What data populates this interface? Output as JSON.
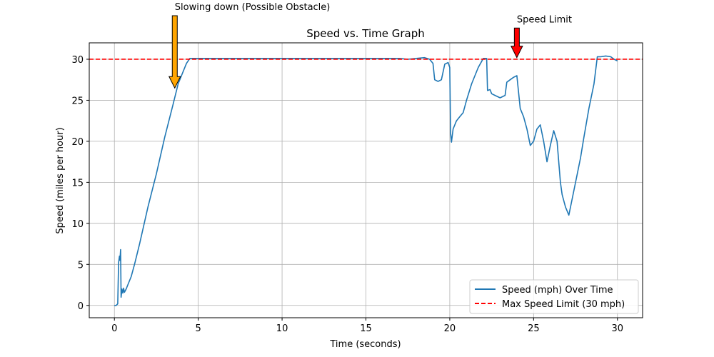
{
  "chart_data": {
    "type": "line",
    "title": "Speed vs. Time Graph",
    "xlabel": "Time (seconds)",
    "ylabel": "Speed (miles per hour)",
    "xlim": [
      -1.5,
      31.5
    ],
    "ylim": [
      -1.5,
      32
    ],
    "xticks": [
      "0",
      "5",
      "10",
      "15",
      "20",
      "25",
      "30"
    ],
    "yticks": [
      "0",
      "5",
      "10",
      "15",
      "20",
      "25",
      "30"
    ],
    "grid": true,
    "legend_position": "lower-right",
    "series": [
      {
        "name": "Speed (mph) Over Time",
        "color": "#1f77b4",
        "style": "solid",
        "x": [
          0,
          0.1,
          0.2,
          0.25,
          0.3,
          0.33,
          0.37,
          0.4,
          0.45,
          0.5,
          0.55,
          0.6,
          0.7,
          0.8,
          1.0,
          1.2,
          1.5,
          2.0,
          2.5,
          3.0,
          3.5,
          3.8,
          4.1,
          4.3,
          4.5,
          5,
          8,
          10,
          12,
          15,
          17,
          17.5,
          18,
          18.5,
          18.8,
          19.0,
          19.1,
          19.3,
          19.5,
          19.7,
          19.9,
          20.0,
          20.05,
          20.1,
          20.2,
          20.4,
          20.6,
          20.8,
          21.0,
          21.3,
          21.7,
          22.0,
          22.2,
          22.25,
          22.4,
          22.5,
          22.7,
          23.0,
          23.3,
          23.4,
          23.6,
          23.8,
          24.0,
          24.2,
          24.4,
          24.6,
          24.8,
          25.0,
          25.2,
          25.4,
          25.6,
          25.8,
          26.0,
          26.2,
          26.4,
          26.6,
          26.7,
          26.9,
          27.1,
          27.3,
          27.5,
          27.8,
          28.0,
          28.3,
          28.6,
          28.8,
          29.0,
          29.3,
          29.6,
          29.8,
          30.0
        ],
        "y": [
          0,
          0,
          0.2,
          5.2,
          6.0,
          5.5,
          6.8,
          1.0,
          2.0,
          1.5,
          2.1,
          1.6,
          2.0,
          2.5,
          3.5,
          5.0,
          7.5,
          12.0,
          16.0,
          20.5,
          24.5,
          27.0,
          28.5,
          29.5,
          30.1,
          30.1,
          30.1,
          30.1,
          30.1,
          30.1,
          30.1,
          30.0,
          30.1,
          30.2,
          30.0,
          29.5,
          27.5,
          27.3,
          27.5,
          29.4,
          29.6,
          29.0,
          21.0,
          19.9,
          21.5,
          22.5,
          23.0,
          23.5,
          25.0,
          27.0,
          29.0,
          30.1,
          30.1,
          26.2,
          26.3,
          25.8,
          25.6,
          25.3,
          25.6,
          27.2,
          27.5,
          27.8,
          28.0,
          24.0,
          23.0,
          21.5,
          19.5,
          20.0,
          21.5,
          22.0,
          20.0,
          17.5,
          19.5,
          21.3,
          20.0,
          15.0,
          13.5,
          12.0,
          11.0,
          13.0,
          15.0,
          18.0,
          20.5,
          24.0,
          27.0,
          30.3,
          30.3,
          30.4,
          30.3,
          30.0,
          29.8
        ]
      },
      {
        "name": "Max Speed Limit (30 mph)",
        "color": "#ff0000",
        "style": "dashed",
        "y_constant": 30
      }
    ],
    "annotations": [
      {
        "text": "Slowing down (Possible Obstacle)",
        "arrow_color": "#ffa500",
        "x": 3.6,
        "y": 26.5,
        "text_y": 36
      },
      {
        "text": "Speed Limit",
        "arrow_color": "#ff0000",
        "x": 24.0,
        "y": 30.2,
        "text_y": 34.5
      }
    ]
  }
}
